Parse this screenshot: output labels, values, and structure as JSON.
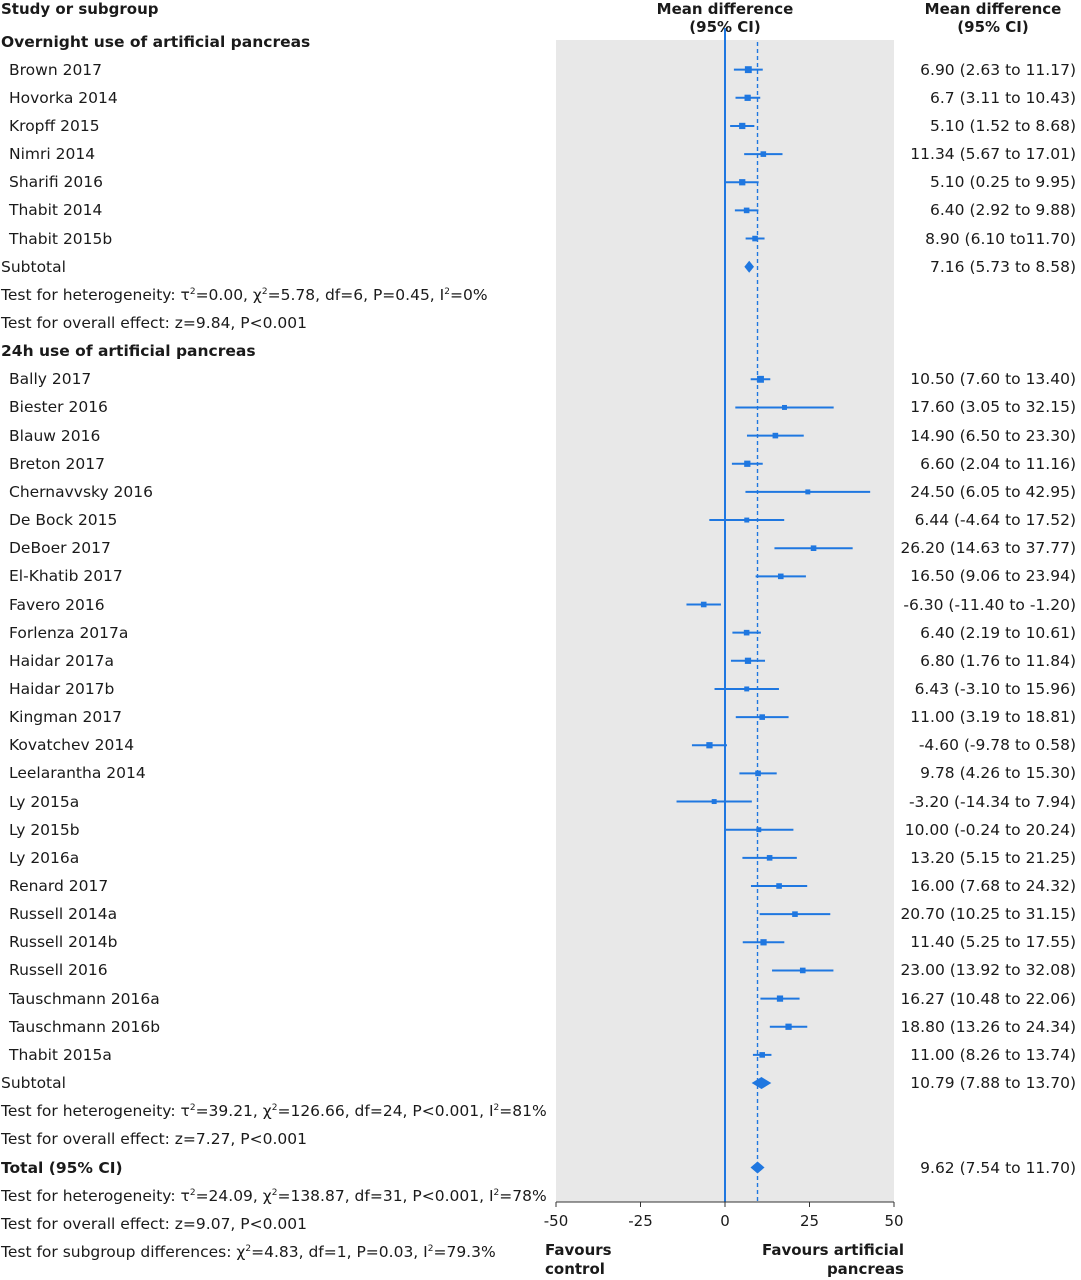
{
  "header": {
    "study_col": "Study or subgroup",
    "plot_col_line1": "Mean difference",
    "plot_col_line2": "(95% CI)",
    "value_col_line1": "Mean difference",
    "value_col_line2": "(95% CI)"
  },
  "colors": {
    "accent": "#1f77e0",
    "panel": "#e8e8e8"
  },
  "chart_data": {
    "type": "forest",
    "xlim": [
      -50,
      50
    ],
    "ticks": [
      -50,
      -25,
      0,
      25,
      50
    ],
    "favours_left": [
      "Favours",
      "control"
    ],
    "favours_right": [
      "Favours artificial",
      "pancreas"
    ],
    "rows": [
      {
        "kind": "section",
        "label": "Overnight use of artificial pancreas"
      },
      {
        "kind": "study",
        "label": "Brown 2017",
        "md": 6.9,
        "lo": 2.63,
        "hi": 11.17,
        "text": "6.90 (2.63 to 11.17)",
        "w": 3
      },
      {
        "kind": "study",
        "label": "Hovorka 2014",
        "md": 6.7,
        "lo": 3.11,
        "hi": 10.43,
        "text": "6.7 (3.11 to 10.43)",
        "w": 2.5
      },
      {
        "kind": "study",
        "label": "Kropff 2015",
        "md": 5.1,
        "lo": 1.52,
        "hi": 8.68,
        "text": "5.10 (1.52 to 8.68)",
        "w": 2.5
      },
      {
        "kind": "study",
        "label": "Nimri 2014",
        "md": 11.34,
        "lo": 5.67,
        "hi": 17.01,
        "text": "11.34 (5.67 to 17.01)",
        "w": 2
      },
      {
        "kind": "study",
        "label": "Sharifi 2016",
        "md": 5.1,
        "lo": 0.25,
        "hi": 9.95,
        "text": "5.10 (0.25 to 9.95)",
        "w": 2.5
      },
      {
        "kind": "study",
        "label": "Thabit 2014",
        "md": 6.4,
        "lo": 2.92,
        "hi": 9.88,
        "text": "6.40 (2.92 to 9.88)",
        "w": 2
      },
      {
        "kind": "study",
        "label": "Thabit 2015b",
        "md": 8.9,
        "lo": 6.1,
        "hi": 11.7,
        "text": "8.90 (6.10 to11.70)",
        "w": 2
      },
      {
        "kind": "subtotal",
        "label": "Subtotal",
        "md": 7.16,
        "lo": 5.73,
        "hi": 8.58,
        "text": "7.16 (5.73 to 8.58)"
      },
      {
        "kind": "note",
        "label": "Test for heterogeneity: τ²=0.00, χ²=5.78, df=6, P=0.45, I²=0%",
        "parts": [
          "Test for heterogeneity: τ",
          "2",
          "=0.00, χ",
          "2",
          "=5.78, df=6, P=0.45, I",
          "2",
          "=0%"
        ]
      },
      {
        "kind": "note",
        "label": "Test for overall effect: z=9.84, P<0.001",
        "parts": [
          "Test for overall effect: z=9.84, P<0.001"
        ]
      },
      {
        "kind": "section",
        "label": "24h use of artificial pancreas"
      },
      {
        "kind": "study",
        "label": "Bally 2017",
        "md": 10.5,
        "lo": 7.6,
        "hi": 13.4,
        "text": "10.50 (7.60 to 13.40)",
        "w": 3
      },
      {
        "kind": "study",
        "label": "Biester 2016",
        "md": 17.6,
        "lo": 3.05,
        "hi": 32.15,
        "text": "17.60 (3.05 to 32.15)",
        "w": 1.5
      },
      {
        "kind": "study",
        "label": "Blauw 2016",
        "md": 14.9,
        "lo": 6.5,
        "hi": 23.3,
        "text": "14.90 (6.50 to 23.30)",
        "w": 2
      },
      {
        "kind": "study",
        "label": "Breton 2017",
        "md": 6.6,
        "lo": 2.04,
        "hi": 11.16,
        "text": "6.60 (2.04 to 11.16)",
        "w": 2.5
      },
      {
        "kind": "study",
        "label": "Chernavvsky 2016",
        "md": 24.5,
        "lo": 6.05,
        "hi": 42.95,
        "text": "24.50 (6.05 to 42.95)",
        "w": 1.5
      },
      {
        "kind": "study",
        "label": "De Bock 2015",
        "md": 6.44,
        "lo": -4.64,
        "hi": 17.52,
        "text": "6.44 (-4.64 to 17.52)",
        "w": 1.5
      },
      {
        "kind": "study",
        "label": "DeBoer 2017",
        "md": 26.2,
        "lo": 14.63,
        "hi": 37.77,
        "text": "26.20 (14.63 to 37.77)",
        "w": 2
      },
      {
        "kind": "study",
        "label": "El-Khatib 2017",
        "md": 16.5,
        "lo": 9.06,
        "hi": 23.94,
        "text": "16.50 (9.06 to 23.94)",
        "w": 2
      },
      {
        "kind": "study",
        "label": "Favero 2016",
        "md": -6.3,
        "lo": -11.4,
        "hi": -1.2,
        "text": "-6.30 (-11.40 to -1.20)",
        "w": 2
      },
      {
        "kind": "study",
        "label": "Forlenza 2017a",
        "md": 6.4,
        "lo": 2.19,
        "hi": 10.61,
        "text": "6.40 (2.19 to 10.61)",
        "w": 2
      },
      {
        "kind": "study",
        "label": "Haidar 2017a",
        "md": 6.8,
        "lo": 1.76,
        "hi": 11.84,
        "text": "6.80 (1.76 to 11.84)",
        "w": 2.5
      },
      {
        "kind": "study",
        "label": "Haidar 2017b",
        "md": 6.43,
        "lo": -3.1,
        "hi": 15.96,
        "text": "6.43 (-3.10 to 15.96)",
        "w": 1.5
      },
      {
        "kind": "study",
        "label": "Kingman 2017",
        "md": 11.0,
        "lo": 3.19,
        "hi": 18.81,
        "text": "11.00 (3.19 to 18.81)",
        "w": 2
      },
      {
        "kind": "study",
        "label": "Kovatchev 2014",
        "md": -4.6,
        "lo": -9.78,
        "hi": 0.58,
        "text": "-4.60 (-9.78 to 0.58)",
        "w": 2.5
      },
      {
        "kind": "study",
        "label": "Leelarantha 2014",
        "md": 9.78,
        "lo": 4.26,
        "hi": 15.3,
        "text": "9.78 (4.26 to 15.30)",
        "w": 2
      },
      {
        "kind": "study",
        "label": "Ly 2015a",
        "md": -3.2,
        "lo": -14.34,
        "hi": 7.94,
        "text": "-3.20 (-14.34 to 7.94)",
        "w": 1.5
      },
      {
        "kind": "study",
        "label": "Ly 2015b",
        "md": 10.0,
        "lo": -0.24,
        "hi": 20.24,
        "text": "10.00 (-0.24 to 20.24)",
        "w": 1.5
      },
      {
        "kind": "study",
        "label": "Ly 2016a",
        "md": 13.2,
        "lo": 5.15,
        "hi": 21.25,
        "text": "13.20 (5.15 to 21.25)",
        "w": 2
      },
      {
        "kind": "study",
        "label": "Renard 2017",
        "md": 16.0,
        "lo": 7.68,
        "hi": 24.32,
        "text": "16.00 (7.68 to 24.32)",
        "w": 2
      },
      {
        "kind": "study",
        "label": "Russell 2014a",
        "md": 20.7,
        "lo": 10.25,
        "hi": 31.15,
        "text": "20.70 (10.25 to 31.15)",
        "w": 2
      },
      {
        "kind": "study",
        "label": "Russell 2014b",
        "md": 11.4,
        "lo": 5.25,
        "hi": 17.55,
        "text": "11.40 (5.25 to 17.55)",
        "w": 2.5
      },
      {
        "kind": "study",
        "label": "Russell 2016",
        "md": 23.0,
        "lo": 13.92,
        "hi": 32.08,
        "text": "23.00 (13.92 to 32.08)",
        "w": 2
      },
      {
        "kind": "study",
        "label": "Tauschmann 2016a",
        "md": 16.27,
        "lo": 10.48,
        "hi": 22.06,
        "text": "16.27 (10.48 to 22.06)",
        "w": 2.5
      },
      {
        "kind": "study",
        "label": "Tauschmann 2016b",
        "md": 18.8,
        "lo": 13.26,
        "hi": 24.34,
        "text": "18.80 (13.26 to 24.34)",
        "w": 2.5
      },
      {
        "kind": "study",
        "label": "Thabit 2015a",
        "md": 11.0,
        "lo": 8.26,
        "hi": 13.74,
        "text": "11.00 (8.26 to 13.74)",
        "w": 2
      },
      {
        "kind": "subtotal",
        "label": "Subtotal",
        "md": 10.79,
        "lo": 7.88,
        "hi": 13.7,
        "text": "10.79 (7.88 to 13.70)"
      },
      {
        "kind": "note",
        "label": "Test for heterogeneity: τ²=39.21, χ²=126.66, df=24, P<0.001, I²=81%",
        "parts": [
          "Test for heterogeneity: τ",
          "2",
          "=39.21, χ",
          "2",
          "=126.66, df=24, P<0.001, I",
          "2",
          "=81%"
        ]
      },
      {
        "kind": "note",
        "label": "Test for overall effect: z=7.27, P<0.001",
        "parts": [
          "Test for overall effect: z=7.27, P<0.001"
        ]
      },
      {
        "kind": "total",
        "label": "Total (95% CI)",
        "md": 9.62,
        "lo": 7.54,
        "hi": 11.7,
        "text": "9.62 (7.54 to 11.70)"
      },
      {
        "kind": "note",
        "label": "Test for heterogeneity: τ²=24.09, χ²=138.87, df=31, P<0.001, I²=78%",
        "parts": [
          "Test for heterogeneity: τ",
          "2",
          "=24.09, χ",
          "2",
          "=138.87, df=31, P<0.001, I",
          "2",
          "=78%"
        ]
      },
      {
        "kind": "note",
        "label": "Test for overall effect: z=9.07, P<0.001",
        "parts": [
          "Test for overall effect: z=9.07, P<0.001"
        ]
      },
      {
        "kind": "note",
        "label": "Test for subgroup differences: χ²=4.83, df=1, P=0.03, I²=79.3%",
        "parts": [
          "Test for subgroup differences: χ",
          "2",
          "=4.83, df=1, P=0.03, I",
          "2",
          "=79.3%"
        ]
      }
    ]
  }
}
